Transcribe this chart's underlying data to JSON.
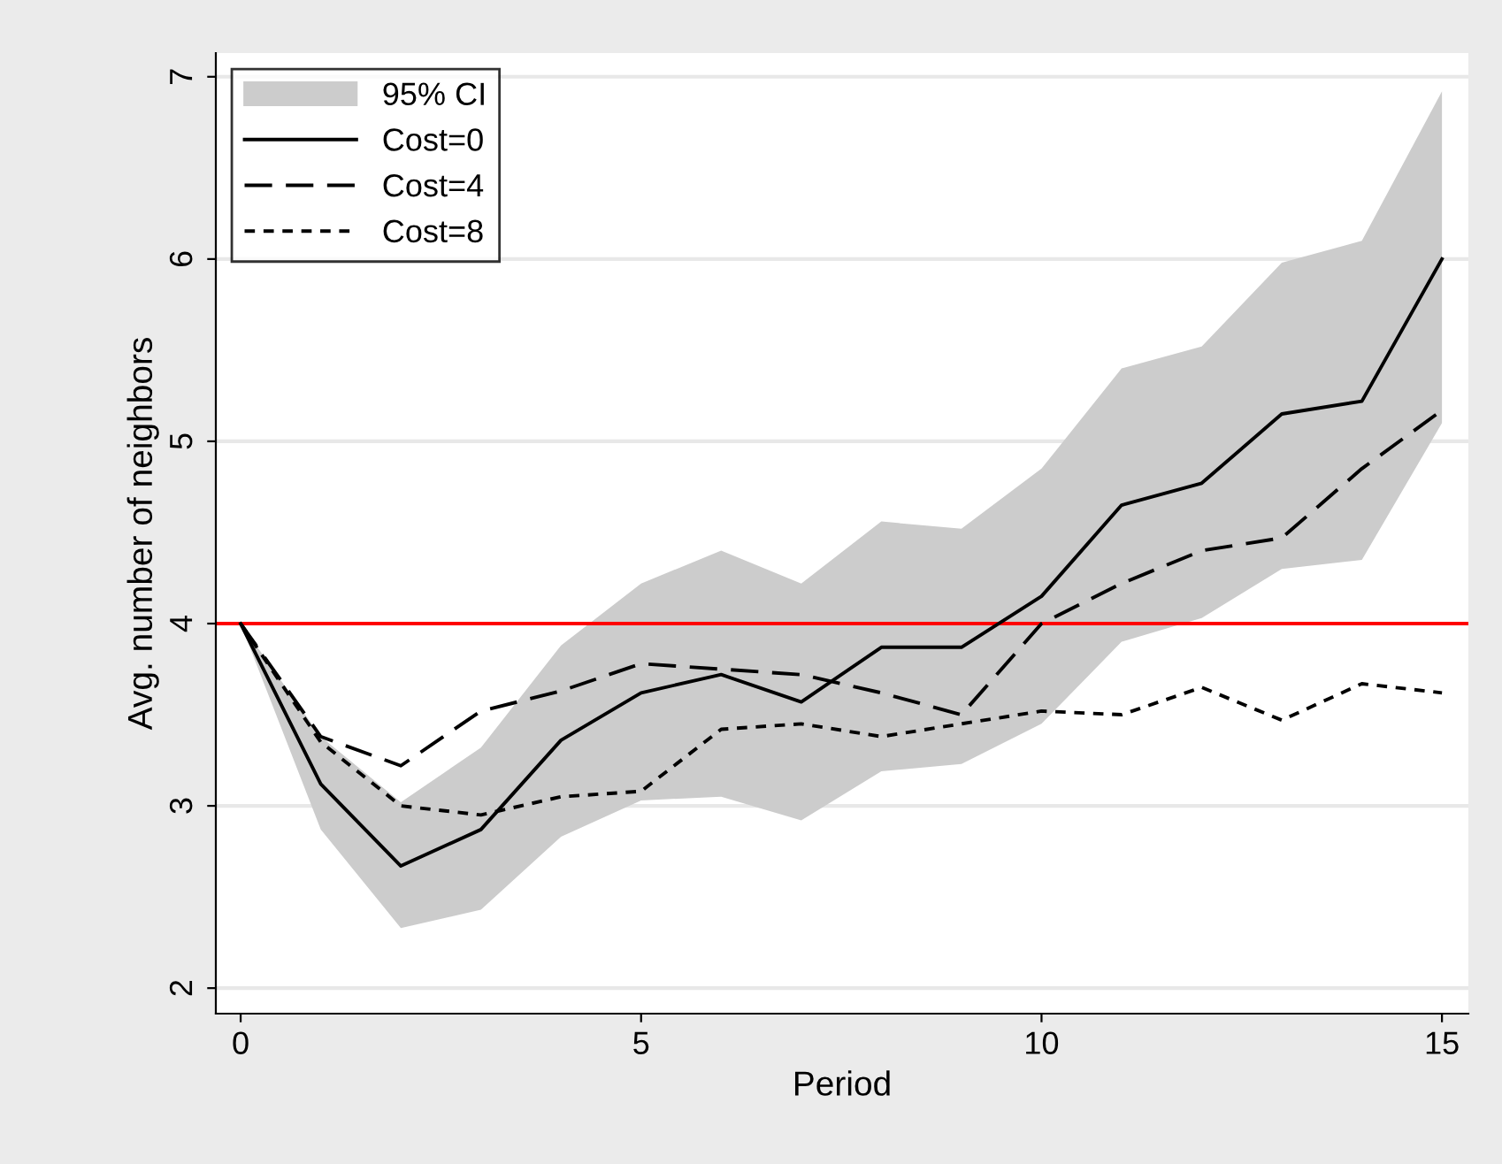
{
  "chart_data": {
    "type": "line",
    "xlabel": "Period",
    "ylabel": "Avg. number of neighbors",
    "x": [
      0,
      1,
      2,
      3,
      4,
      5,
      6,
      7,
      8,
      9,
      10,
      11,
      12,
      13,
      14,
      15
    ],
    "series": [
      {
        "name": "95% CI",
        "type": "area",
        "color": "#cccccc",
        "values": [
          null,
          null,
          null,
          null,
          null,
          null,
          null,
          null,
          null,
          null,
          null,
          null,
          null,
          null,
          null,
          null
        ],
        "lower": [
          4,
          2.87,
          2.33,
          2.43,
          2.83,
          3.03,
          3.05,
          2.92,
          3.19,
          3.23,
          3.45,
          3.9,
          4.03,
          4.3,
          4.35,
          5.1
        ],
        "upper": [
          4,
          3.38,
          3.02,
          3.32,
          3.88,
          4.22,
          4.4,
          4.22,
          4.56,
          4.52,
          4.85,
          5.4,
          5.52,
          5.98,
          6.1,
          6.92
        ]
      },
      {
        "name": "Cost=0",
        "color": "#000000",
        "line_style": "solid",
        "values": [
          4,
          3.12,
          2.67,
          2.87,
          3.36,
          3.62,
          3.72,
          3.57,
          3.87,
          3.87,
          4.15,
          4.65,
          4.77,
          5.15,
          5.22,
          6.0
        ]
      },
      {
        "name": "Cost=4",
        "color": "#000000",
        "line_style": "dashed",
        "values": [
          4,
          3.38,
          3.22,
          3.52,
          3.63,
          3.78,
          3.75,
          3.72,
          3.62,
          3.5,
          4.0,
          4.22,
          4.4,
          4.47,
          4.85,
          5.17
        ]
      },
      {
        "name": "Cost=8",
        "color": "#000000",
        "line_style": "dotted",
        "values": [
          4,
          3.35,
          3.0,
          2.95,
          3.05,
          3.08,
          3.42,
          3.45,
          3.38,
          3.45,
          3.52,
          3.5,
          3.65,
          3.47,
          3.67,
          3.62
        ]
      }
    ],
    "ref_lines": [
      {
        "axis": "y",
        "value": 4,
        "color": "#ff0000"
      }
    ],
    "xlim": [
      -0.31,
      15.33
    ],
    "ylim": [
      1.86,
      7.13
    ],
    "xticks": [
      0,
      5,
      10,
      15
    ],
    "yticks": [
      2,
      3,
      4,
      5,
      6,
      7
    ],
    "grid": "y",
    "legend": "top left"
  }
}
